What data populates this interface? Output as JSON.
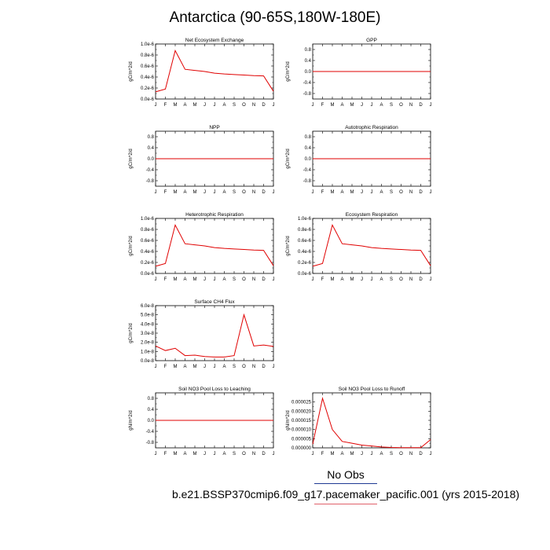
{
  "title": "Antarctica (90-65S,180W-180E)",
  "legend": {
    "obs_label": "No Obs",
    "case_label": "b.e21.BSSP370cmip6.f09_g17.pacemaker_pacific.001 (yrs 2015-2018)",
    "obs_color": "#1f3a93",
    "case_color": "#e0606a"
  },
  "chart_data": [
    {
      "type": "line",
      "title": "Net Ecosystem Exchange",
      "ylabel": "gC/m^2/d",
      "categories": [
        "J",
        "F",
        "M",
        "A",
        "M",
        "J",
        "J",
        "A",
        "S",
        "O",
        "N",
        "D",
        "J"
      ],
      "ylim": [
        0,
        1e-06
      ],
      "yticks": [
        0,
        2e-07,
        4e-07,
        6e-07,
        8e-07,
        1e-06
      ],
      "ytick_labels": [
        "0.0e-6",
        "0.2e-6",
        "0.4e-6",
        "0.6e-6",
        "0.8e-6",
        "1.0e-6"
      ],
      "series": [
        {
          "color": "#e00000",
          "values": [
            1.3e-07,
            1.8e-07,
            8.8e-07,
            5.4e-07,
            5.2e-07,
            5e-07,
            4.7e-07,
            4.55e-07,
            4.45e-07,
            4.35e-07,
            4.25e-07,
            4.2e-07,
            1.4e-07
          ]
        }
      ]
    },
    {
      "type": "line",
      "title": "GPP",
      "ylabel": "gC/m^2/d",
      "categories": [
        "J",
        "F",
        "M",
        "A",
        "M",
        "J",
        "J",
        "A",
        "S",
        "O",
        "N",
        "D",
        "J"
      ],
      "ylim": [
        -1,
        1
      ],
      "yticks": [
        -0.8,
        -0.4,
        0,
        0.4,
        0.8
      ],
      "ytick_labels": [
        "-0.8",
        "-0.4",
        "0.0",
        "0.4",
        "0.8"
      ],
      "series": [
        {
          "color": "#e00000",
          "values": [
            0,
            0,
            0,
            0,
            0,
            0,
            0,
            0,
            0,
            0,
            0,
            0,
            0
          ]
        }
      ]
    },
    {
      "type": "line",
      "title": "NPP",
      "ylabel": "gC/m^2/d",
      "categories": [
        "J",
        "F",
        "M",
        "A",
        "M",
        "J",
        "J",
        "A",
        "S",
        "O",
        "N",
        "D",
        "J"
      ],
      "ylim": [
        -1,
        1
      ],
      "yticks": [
        -0.8,
        -0.4,
        0,
        0.4,
        0.8
      ],
      "ytick_labels": [
        "-0.8",
        "-0.4",
        "0.0",
        "0.4",
        "0.8"
      ],
      "series": [
        {
          "color": "#e00000",
          "values": [
            0,
            0,
            0,
            0,
            0,
            0,
            0,
            0,
            0,
            0,
            0,
            0,
            0
          ]
        }
      ]
    },
    {
      "type": "line",
      "title": "Autotrophic Respiration",
      "ylabel": "gC/m^2/d",
      "categories": [
        "J",
        "F",
        "M",
        "A",
        "M",
        "J",
        "J",
        "A",
        "S",
        "O",
        "N",
        "D",
        "J"
      ],
      "ylim": [
        -1,
        1
      ],
      "yticks": [
        -0.8,
        -0.4,
        0,
        0.4,
        0.8
      ],
      "ytick_labels": [
        "-0.8",
        "-0.4",
        "0.0",
        "0.4",
        "0.8"
      ],
      "series": [
        {
          "color": "#e00000",
          "values": [
            0,
            0,
            0,
            0,
            0,
            0,
            0,
            0,
            0,
            0,
            0,
            0,
            0
          ]
        }
      ]
    },
    {
      "type": "line",
      "title": "Heterotrophic Respiration",
      "ylabel": "gC/m^2/d",
      "categories": [
        "J",
        "F",
        "M",
        "A",
        "M",
        "J",
        "J",
        "A",
        "S",
        "O",
        "N",
        "D",
        "J"
      ],
      "ylim": [
        0,
        1e-06
      ],
      "yticks": [
        0,
        2e-07,
        4e-07,
        6e-07,
        8e-07,
        1e-06
      ],
      "ytick_labels": [
        "0.0e-6",
        "0.2e-6",
        "0.4e-6",
        "0.6e-6",
        "0.8e-6",
        "1.0e-6"
      ],
      "series": [
        {
          "color": "#e00000",
          "values": [
            1.3e-07,
            1.8e-07,
            8.8e-07,
            5.4e-07,
            5.2e-07,
            5e-07,
            4.7e-07,
            4.55e-07,
            4.45e-07,
            4.35e-07,
            4.25e-07,
            4.2e-07,
            1.4e-07
          ]
        }
      ]
    },
    {
      "type": "line",
      "title": "Ecosystem Respiration",
      "ylabel": "gC/m^2/d",
      "categories": [
        "J",
        "F",
        "M",
        "A",
        "M",
        "J",
        "J",
        "A",
        "S",
        "O",
        "N",
        "D",
        "J"
      ],
      "ylim": [
        0,
        1e-06
      ],
      "yticks": [
        0,
        2e-07,
        4e-07,
        6e-07,
        8e-07,
        1e-06
      ],
      "ytick_labels": [
        "0.0e-6",
        "0.2e-6",
        "0.4e-6",
        "0.6e-6",
        "0.8e-6",
        "1.0e-6"
      ],
      "series": [
        {
          "color": "#e00000",
          "values": [
            1.3e-07,
            1.8e-07,
            8.8e-07,
            5.4e-07,
            5.2e-07,
            5e-07,
            4.7e-07,
            4.55e-07,
            4.45e-07,
            4.35e-07,
            4.25e-07,
            4.2e-07,
            1.4e-07
          ]
        }
      ]
    },
    {
      "type": "line",
      "title": "Surface CH4 Flux",
      "ylabel": "gC/m^2/d",
      "categories": [
        "J",
        "F",
        "M",
        "A",
        "M",
        "J",
        "J",
        "A",
        "S",
        "O",
        "N",
        "D",
        "J"
      ],
      "ylim": [
        0,
        6e-08
      ],
      "yticks": [
        0,
        1e-08,
        2e-08,
        3e-08,
        4e-08,
        5e-08,
        6e-08
      ],
      "ytick_labels": [
        "0.0e-8",
        "1.0e-8",
        "2.0e-8",
        "3.0e-8",
        "4.0e-8",
        "5.0e-8",
        "6.0e-8"
      ],
      "series": [
        {
          "color": "#e00000",
          "values": [
            1.6e-08,
            1.1e-08,
            1.35e-08,
            5.5e-09,
            6e-09,
            4.5e-09,
            4e-09,
            4e-09,
            5.5e-09,
            5e-08,
            1.6e-08,
            1.7e-08,
            1.55e-08
          ]
        }
      ]
    },
    {
      "type": "line",
      "title": "Soil NO3 Pool Loss to Leaching",
      "ylabel": "gN/m^2/d",
      "categories": [
        "J",
        "F",
        "M",
        "A",
        "M",
        "J",
        "J",
        "A",
        "S",
        "O",
        "N",
        "D",
        "J"
      ],
      "ylim": [
        -1,
        1
      ],
      "yticks": [
        -0.8,
        -0.4,
        0,
        0.4,
        0.8
      ],
      "ytick_labels": [
        "-0.8",
        "-0.4",
        "0.0",
        "0.4",
        "0.8"
      ],
      "series": [
        {
          "color": "#e00000",
          "values": [
            0,
            0,
            0,
            0,
            0,
            0,
            0,
            0,
            0,
            0,
            0,
            0,
            0
          ]
        }
      ]
    },
    {
      "type": "line",
      "title": "Soil NO3 Pool Loss to Runoff",
      "ylabel": "gN/m^2/d",
      "categories": [
        "J",
        "F",
        "M",
        "A",
        "M",
        "J",
        "J",
        "A",
        "S",
        "O",
        "N",
        "D",
        "J"
      ],
      "ylim": [
        0,
        3e-05
      ],
      "yticks": [
        0,
        5e-06,
        1e-05,
        1.5e-05,
        2e-05,
        2.5e-05
      ],
      "ytick_labels": [
        "0.000000",
        "0.000005",
        "0.000010",
        "0.000015",
        "0.000020",
        "0.000025"
      ],
      "series": [
        {
          "color": "#e00000",
          "values": [
            2e-06,
            2.7e-05,
            1e-05,
            3.5e-06,
            2.5e-06,
            1.5e-06,
            1e-06,
            5e-07,
            2e-07,
            1e-07,
            1e-07,
            1e-07,
            4.5e-06
          ]
        }
      ]
    }
  ]
}
